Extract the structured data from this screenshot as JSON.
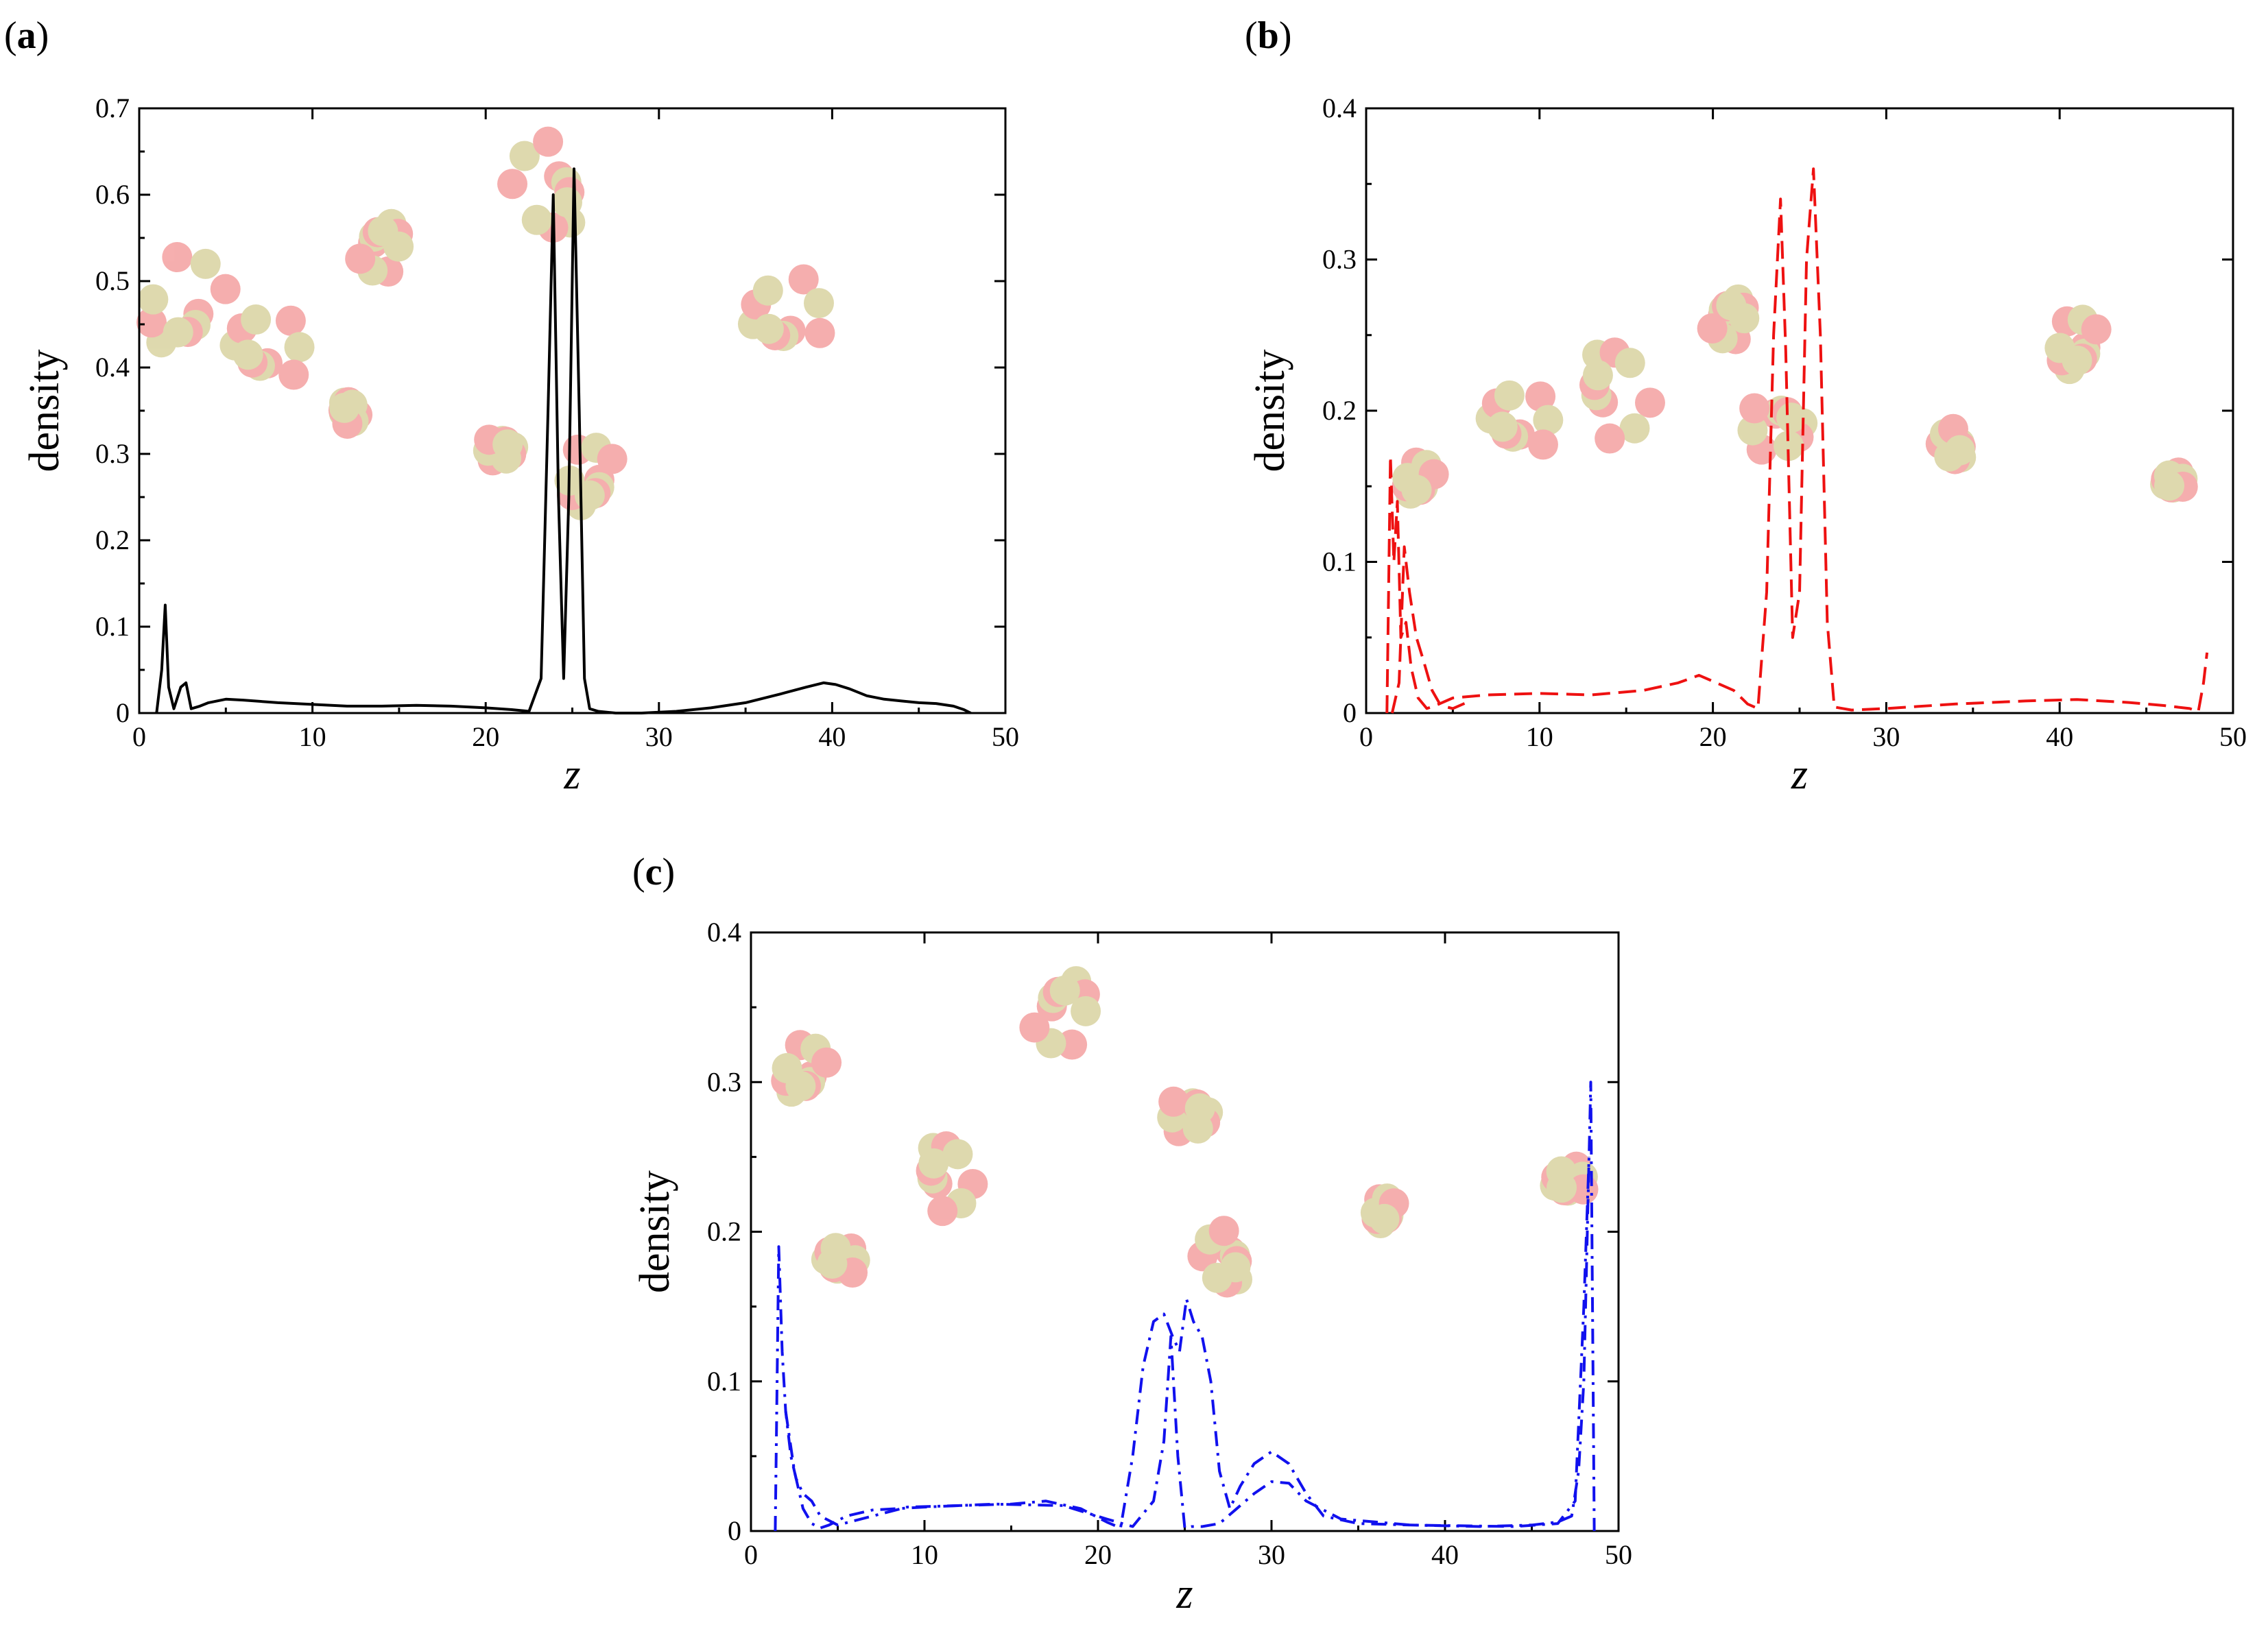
{
  "chart_data": [
    {
      "type": "line",
      "panel": "a",
      "xlabel": "z",
      "ylabel": "density",
      "xlim": [
        0,
        50
      ],
      "ylim": [
        0,
        0.7
      ],
      "xticks": [
        0,
        10,
        20,
        30,
        40,
        50
      ],
      "yticks": [
        0,
        0.1,
        0.2,
        0.3,
        0.4,
        0.5,
        0.6,
        0.7
      ],
      "grid": false,
      "inset": "molecular snapshot (red/olive spheres) behind curves",
      "series": [
        {
          "name": "solid curve",
          "color": "#000000",
          "dash": "solid",
          "x": [
            1.0,
            1.3,
            1.5,
            1.7,
            2.0,
            2.4,
            2.7,
            3.0,
            3.5,
            4.0,
            5.0,
            6.0,
            8.0,
            10.0,
            12.0,
            14.0,
            16.0,
            18.0,
            20.0,
            21.5,
            22.5,
            23.2,
            23.6,
            23.9,
            24.2,
            24.5,
            24.8,
            25.1,
            25.4,
            25.7,
            26.0,
            26.5,
            27.5,
            29.0,
            31.0,
            33.0,
            35.0,
            37.0,
            38.5,
            39.5,
            40.2,
            41.0,
            42.0,
            43.0,
            44.0,
            45.0,
            46.0,
            47.0,
            47.6,
            48.0
          ],
          "y": [
            0.0,
            0.05,
            0.125,
            0.03,
            0.005,
            0.03,
            0.035,
            0.005,
            0.008,
            0.012,
            0.016,
            0.015,
            0.012,
            0.01,
            0.008,
            0.008,
            0.009,
            0.008,
            0.006,
            0.004,
            0.002,
            0.04,
            0.35,
            0.6,
            0.25,
            0.04,
            0.25,
            0.63,
            0.35,
            0.04,
            0.005,
            0.002,
            0.0,
            0.0,
            0.002,
            0.006,
            0.012,
            0.022,
            0.03,
            0.035,
            0.033,
            0.028,
            0.02,
            0.016,
            0.014,
            0.012,
            0.011,
            0.008,
            0.004,
            0.0
          ]
        }
      ]
    },
    {
      "type": "line",
      "panel": "b",
      "xlabel": "z",
      "ylabel": "density",
      "xlim": [
        0,
        50
      ],
      "ylim": [
        0,
        0.4
      ],
      "xticks": [
        0,
        10,
        20,
        30,
        40,
        50
      ],
      "yticks": [
        0,
        0.1,
        0.2,
        0.3,
        0.4
      ],
      "grid": false,
      "inset": "molecular snapshot (red/olive spheres) behind curves",
      "series": [
        {
          "name": "dashed curve 1",
          "color": "#ee1111",
          "dash": "dashed",
          "x": [
            1.2,
            1.4,
            1.6,
            1.8,
            2.0,
            2.3,
            2.6,
            3.0,
            3.5,
            4.0,
            5.0,
            7.0,
            10.0,
            13.0,
            16.0,
            18.0,
            19.2,
            20.2,
            21.2,
            22.0,
            22.6,
            23.1,
            23.5,
            23.9,
            24.2,
            24.6,
            25.0,
            25.4,
            25.8,
            26.2,
            26.6,
            27.0,
            28.0,
            30.0,
            34.0,
            38.0,
            41.0,
            44.0,
            46.0,
            47.5,
            48.0,
            48.3,
            48.5
          ],
          "y": [
            0.0,
            0.17,
            0.1,
            0.14,
            0.05,
            0.06,
            0.03,
            0.01,
            0.003,
            0.005,
            0.01,
            0.012,
            0.013,
            0.012,
            0.015,
            0.02,
            0.025,
            0.02,
            0.015,
            0.006,
            0.003,
            0.08,
            0.25,
            0.34,
            0.24,
            0.05,
            0.08,
            0.3,
            0.36,
            0.25,
            0.06,
            0.004,
            0.002,
            0.003,
            0.006,
            0.008,
            0.009,
            0.007,
            0.005,
            0.003,
            0.001,
            0.02,
            0.04
          ]
        },
        {
          "name": "dashed curve 2",
          "color": "#ee1111",
          "dash": "dashed",
          "x": [
            1.5,
            1.9,
            2.2,
            2.5,
            2.9,
            3.3,
            3.8,
            4.3,
            5.0,
            6.0
          ],
          "y": [
            0.0,
            0.02,
            0.11,
            0.08,
            0.05,
            0.035,
            0.015,
            0.005,
            0.003,
            0.008
          ]
        }
      ]
    },
    {
      "type": "line",
      "panel": "c",
      "xlabel": "z",
      "ylabel": "density",
      "xlim": [
        0,
        50
      ],
      "ylim": [
        0,
        0.4
      ],
      "xticks": [
        0,
        10,
        20,
        30,
        40,
        50
      ],
      "yticks": [
        0,
        0.1,
        0.2,
        0.3,
        0.4
      ],
      "grid": false,
      "inset": "molecular snapshot (red/olive spheres) behind curves",
      "series": [
        {
          "name": "dash-dot curve 1",
          "color": "#1111ee",
          "dash": "dashdot",
          "x": [
            1.4,
            1.6,
            1.8,
            2.0,
            2.3,
            2.6,
            3.0,
            3.5,
            4.0,
            5.0,
            7.0,
            9.0,
            12.0,
            15.0,
            17.0,
            19.0,
            20.5,
            21.3,
            22.0,
            22.6,
            23.2,
            23.8,
            24.3,
            24.7,
            25.1,
            25.5,
            26.0,
            26.5,
            27.0,
            27.6,
            28.2,
            29.0,
            30.0,
            31.0,
            32.0,
            33.0,
            35.0,
            38.0,
            42.0,
            45.0,
            46.5,
            47.3,
            47.7,
            48.0,
            48.2,
            48.4,
            48.6
          ],
          "y": [
            0.0,
            0.19,
            0.12,
            0.08,
            0.05,
            0.035,
            0.025,
            0.02,
            0.01,
            0.004,
            0.01,
            0.016,
            0.017,
            0.018,
            0.02,
            0.015,
            0.006,
            0.002,
            0.05,
            0.11,
            0.14,
            0.145,
            0.13,
            0.12,
            0.155,
            0.14,
            0.13,
            0.1,
            0.04,
            0.015,
            0.03,
            0.045,
            0.053,
            0.045,
            0.025,
            0.01,
            0.005,
            0.004,
            0.003,
            0.004,
            0.006,
            0.01,
            0.04,
            0.1,
            0.2,
            0.3,
            0.0
          ]
        },
        {
          "name": "dash-dot curve 2",
          "color": "#1111ee",
          "dash": "dashdot",
          "x": [
            2.0,
            2.5,
            3.0,
            3.5,
            4.0,
            4.5,
            5.5,
            7.0,
            10.0,
            14.0,
            18.0,
            20.5,
            22.0,
            23.2,
            23.8,
            24.2,
            24.6,
            25.0,
            25.4,
            26.0,
            27.0,
            28.0,
            29.0,
            30.0,
            31.0,
            32.0,
            34.0,
            38.0,
            44.0,
            46.5,
            47.5,
            48.0,
            48.3
          ],
          "y": [
            0.08,
            0.04,
            0.015,
            0.005,
            0.002,
            0.004,
            0.01,
            0.014,
            0.016,
            0.018,
            0.017,
            0.008,
            0.003,
            0.02,
            0.06,
            0.13,
            0.05,
            0.002,
            0.003,
            0.003,
            0.005,
            0.015,
            0.025,
            0.033,
            0.032,
            0.02,
            0.008,
            0.004,
            0.003,
            0.005,
            0.02,
            0.15,
            0.25
          ]
        }
      ]
    }
  ]
}
